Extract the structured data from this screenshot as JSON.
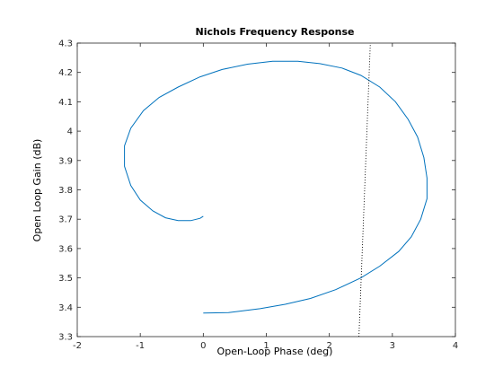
{
  "chart_data": {
    "type": "line",
    "title": "Nichols Frequency Response",
    "xlabel": "Open-Loop Phase (deg)",
    "ylabel": "Open Loop Gain (dB)",
    "xlim": [
      -2,
      4
    ],
    "ylim": [
      3.3,
      4.3
    ],
    "xticks": [
      -2,
      -1,
      0,
      1,
      2,
      3,
      4
    ],
    "xtick_labels": [
      "-2",
      "-1",
      "0",
      "1",
      "2",
      "3",
      "4"
    ],
    "yticks": [
      3.3,
      3.4,
      3.5,
      3.6,
      3.7,
      3.8,
      3.9,
      4.0,
      4.1,
      4.2,
      4.3
    ],
    "ytick_labels": [
      "3.3",
      "3.4",
      "3.5",
      "3.6",
      "3.7",
      "3.8",
      "3.9",
      "4",
      "4.1",
      "4.2",
      "4.3"
    ],
    "grid": false,
    "box": true,
    "colors": {
      "series": "#0072bd",
      "reference": "#000000",
      "axes": "#262626"
    },
    "series": [
      {
        "style": "solid",
        "x": [
          0.0,
          0.4,
          0.9,
          1.3,
          1.7,
          2.1,
          2.5,
          2.8,
          3.1,
          3.3,
          3.45,
          3.55,
          3.55,
          3.5,
          3.4,
          3.25,
          3.05,
          2.8,
          2.5,
          2.2,
          1.85,
          1.5,
          1.1,
          0.7,
          0.3,
          -0.05,
          -0.4,
          -0.7,
          -0.95,
          -1.15,
          -1.25,
          -1.25,
          -1.15,
          -1.0,
          -0.8,
          -0.6,
          -0.4,
          -0.2,
          -0.05,
          0.0
        ],
        "y": [
          3.38,
          3.382,
          3.395,
          3.41,
          3.43,
          3.46,
          3.5,
          3.54,
          3.59,
          3.64,
          3.7,
          3.77,
          3.84,
          3.91,
          3.98,
          4.04,
          4.1,
          4.15,
          4.19,
          4.215,
          4.23,
          4.238,
          4.238,
          4.228,
          4.21,
          4.185,
          4.15,
          4.115,
          4.07,
          4.01,
          3.95,
          3.88,
          3.815,
          3.765,
          3.728,
          3.705,
          3.695,
          3.695,
          3.703,
          3.71
        ]
      },
      {
        "style": "dotted",
        "x": [
          2.47,
          2.65
        ],
        "y": [
          3.3,
          4.3
        ]
      }
    ]
  }
}
